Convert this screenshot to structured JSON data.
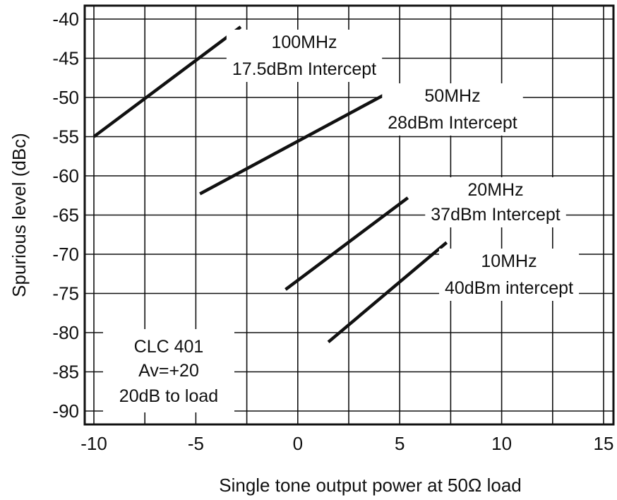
{
  "chart_data": {
    "type": "line",
    "title": "",
    "xlabel": "Single tone output power at 50Ω load",
    "ylabel": "Spurious level (dBc)",
    "xlim": [
      -10,
      15
    ],
    "ylim": [
      -90,
      -40
    ],
    "x_ticks": [
      -10,
      -5,
      0,
      5,
      10,
      15
    ],
    "x_tick_labels": [
      "-10",
      "-5",
      "0",
      "5",
      "10",
      "15"
    ],
    "y_ticks": [
      -40,
      -45,
      -50,
      -55,
      -60,
      -65,
      -70,
      -75,
      -80,
      -85,
      -90
    ],
    "y_tick_labels": [
      "-40",
      "-45",
      "-50",
      "-55",
      "-60",
      "-65",
      "-70",
      "-75",
      "-80",
      "-85",
      "-90"
    ],
    "grid": true,
    "series": [
      {
        "name": "100MHz",
        "note": "17.5dBm Intercept",
        "x": [
          -10,
          -2.8
        ],
        "y": [
          -55,
          -41
        ]
      },
      {
        "name": "50MHz",
        "note": "28dBm Intercept",
        "x": [
          -4.8,
          4.5
        ],
        "y": [
          -62.3,
          -49.3
        ]
      },
      {
        "name": "20MHz",
        "note": "37dBm Intercept",
        "x": [
          -0.6,
          5.4
        ],
        "y": [
          -74.5,
          -62.8
        ]
      },
      {
        "name": "10MHz",
        "note": "40dBm intercept",
        "x": [
          1.5,
          7.3
        ],
        "y": [
          -81.2,
          -68.5
        ]
      }
    ],
    "annotation": [
      "CLC 401",
      "Av=+20",
      "20dB to load"
    ]
  }
}
